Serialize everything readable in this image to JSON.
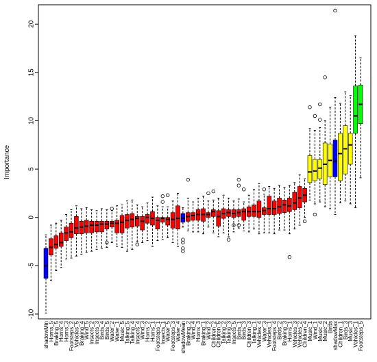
{
  "chart_data": {
    "type": "boxplot",
    "title": "",
    "xlabel": "",
    "ylabel": "Importance",
    "ylim": [
      -10.5,
      22
    ],
    "y_ticks": [
      -10,
      -5,
      0,
      5,
      10,
      15,
      20
    ],
    "colors": {
      "rejected": "#ff0000",
      "tentative": "#ffff00",
      "confirmed": "#00ff00",
      "shadow": "#0000ff"
    },
    "boxes": [
      {
        "label": "shadowMin",
        "status": "shadow",
        "stats": [
          -9.9,
          -6.3,
          -5.0,
          -3.2,
          -1.8
        ],
        "outliers": []
      },
      {
        "label": "Horns_5",
        "status": "rejected",
        "stats": [
          -6.5,
          -3.9,
          -3.1,
          -2.2,
          -0.8
        ],
        "outliers": []
      },
      {
        "label": "Braking_5",
        "status": "rejected",
        "stats": [
          -5.5,
          -3.2,
          -2.8,
          -1.9,
          -0.6
        ],
        "outliers": []
      },
      {
        "label": "Horns_4",
        "status": "rejected",
        "stats": [
          -5.2,
          -3.0,
          -2.6,
          -1.6,
          -0.3
        ],
        "outliers": []
      },
      {
        "label": "Horns_3",
        "status": "rejected",
        "stats": [
          -4.3,
          -2.4,
          -1.6,
          -1.0,
          0.3
        ],
        "outliers": []
      },
      {
        "label": "Footsteps_2",
        "status": "rejected",
        "stats": [
          -4.2,
          -2.1,
          -1.5,
          -0.6,
          0.8
        ],
        "outliers": []
      },
      {
        "label": "Vehicles_5",
        "status": "rejected",
        "stats": [
          -4.0,
          -1.7,
          -1.1,
          0.1,
          1.2
        ],
        "outliers": []
      },
      {
        "label": "Braking_4",
        "status": "rejected",
        "stats": [
          -3.8,
          -1.7,
          -1.0,
          -0.4,
          0.9
        ],
        "outliers": []
      },
      {
        "label": "Wind_5",
        "status": "rejected",
        "stats": [
          -3.6,
          -1.6,
          -0.9,
          -0.3,
          1.0
        ],
        "outliers": []
      },
      {
        "label": "Insects_2",
        "status": "rejected",
        "stats": [
          -3.5,
          -1.6,
          -0.8,
          -0.4,
          0.8
        ],
        "outliers": []
      },
      {
        "label": "Insects_3",
        "status": "rejected",
        "stats": [
          -3.3,
          -1.5,
          -0.8,
          -0.4,
          0.7
        ],
        "outliers": []
      },
      {
        "label": "Birds_4",
        "status": "rejected",
        "stats": [
          -3.2,
          -1.5,
          -0.7,
          -0.4,
          0.9
        ],
        "outliers": []
      },
      {
        "label": "Birds_5",
        "status": "rejected",
        "stats": [
          -3.1,
          -1.2,
          -0.7,
          -0.4,
          0.8
        ],
        "outliers": [
          -2.6
        ]
      },
      {
        "label": "Water_2",
        "status": "rejected",
        "stats": [
          -2.6,
          -1.0,
          -0.6,
          -0.4,
          0.7
        ],
        "outliers": [
          0.9
        ]
      },
      {
        "label": "Water_1",
        "status": "rejected",
        "stats": [
          -3.0,
          -1.6,
          -0.6,
          -0.3,
          1.2
        ],
        "outliers": []
      },
      {
        "label": "Music_5",
        "status": "rejected",
        "stats": [
          -3.1,
          -1.6,
          -0.5,
          0.2,
          1.3
        ],
        "outliers": []
      },
      {
        "label": "Talking_5",
        "status": "rejected",
        "stats": [
          -3.5,
          -1.1,
          -0.3,
          0.3,
          1.7
        ],
        "outliers": []
      },
      {
        "label": "Talking_4",
        "status": "rejected",
        "stats": [
          -3.3,
          -1.0,
          -0.2,
          0.4,
          1.8
        ],
        "outliers": []
      },
      {
        "label": "Insects_4",
        "status": "rejected",
        "stats": [
          -2.5,
          -0.9,
          -0.1,
          0.1,
          1.3
        ],
        "outliers": [
          -2.8
        ]
      },
      {
        "label": "Wind_3",
        "status": "rejected",
        "stats": [
          -2.6,
          -1.3,
          -0.4,
          0.1,
          1.1
        ],
        "outliers": []
      },
      {
        "label": "Horns_2",
        "status": "rejected",
        "stats": [
          -2.4,
          -0.6,
          0.0,
          0.3,
          1.5
        ],
        "outliers": []
      },
      {
        "label": "Horns_1",
        "status": "rejected",
        "stats": [
          -3.0,
          -0.8,
          -0.1,
          0.6,
          2.1
        ],
        "outliers": []
      },
      {
        "label": "Footsteps_1",
        "status": "rejected",
        "stats": [
          -2.4,
          -1.2,
          -0.3,
          0.0,
          1.2
        ],
        "outliers": []
      },
      {
        "label": "Insects_1",
        "status": "rejected",
        "stats": [
          -2.3,
          -0.5,
          -0.1,
          0.0,
          1.1
        ],
        "outliers": [
          1.6,
          2.2
        ]
      },
      {
        "label": "Water_5",
        "status": "rejected",
        "stats": [
          -2.1,
          -0.8,
          -0.2,
          0.0,
          1.1
        ],
        "outliers": [
          2.3
        ]
      },
      {
        "label": "Footsteps_3",
        "status": "rejected",
        "stats": [
          -2.6,
          -1.1,
          -0.2,
          0.5,
          1.7
        ],
        "outliers": []
      },
      {
        "label": "Water_4",
        "status": "rejected",
        "stats": [
          -3.0,
          -1.2,
          -0.1,
          1.2,
          2.5
        ],
        "outliers": []
      },
      {
        "label": "shadowMean",
        "status": "shadow",
        "stats": [
          -1.0,
          -0.5,
          -0.1,
          0.4,
          1.0
        ],
        "outliers": [
          -2.3,
          -2.6,
          -3.2,
          -3.5
        ]
      },
      {
        "label": "Braking_2",
        "status": "rejected",
        "stats": [
          -1.4,
          -0.4,
          0.1,
          0.5,
          2.0
        ],
        "outliers": [
          3.9
        ]
      },
      {
        "label": "Wind_4",
        "status": "rejected",
        "stats": [
          -1.5,
          -0.3,
          0.2,
          0.5,
          1.6
        ],
        "outliers": []
      },
      {
        "label": "Horns_3",
        "status": "rejected",
        "stats": [
          -1.5,
          -0.3,
          0.3,
          0.8,
          2.0
        ],
        "outliers": []
      },
      {
        "label": "Braking_1",
        "status": "rejected",
        "stats": [
          -1.7,
          -0.4,
          0.3,
          0.9,
          2.2
        ],
        "outliers": []
      },
      {
        "label": "Wind_2",
        "status": "rejected",
        "stats": [
          -1.0,
          0.0,
          0.3,
          0.5,
          1.7
        ],
        "outliers": [
          2.5
        ]
      },
      {
        "label": "Children_2",
        "status": "rejected",
        "stats": [
          -1.6,
          0.1,
          0.6,
          0.8,
          1.8
        ],
        "outliers": [
          2.7
        ]
      },
      {
        "label": "Children_5",
        "status": "rejected",
        "stats": [
          -2.0,
          -0.9,
          0.1,
          0.7,
          2.0
        ],
        "outliers": []
      },
      {
        "label": "Talking_2",
        "status": "rejected",
        "stats": [
          -1.6,
          -0.1,
          0.4,
          0.9,
          2.3
        ],
        "outliers": []
      },
      {
        "label": "Talking_3",
        "status": "rejected",
        "stats": [
          -2.0,
          0.1,
          0.5,
          0.8,
          2.0
        ],
        "outliers": [
          -2.3
        ]
      },
      {
        "label": "Insects_5",
        "status": "rejected",
        "stats": [
          -1.5,
          0.0,
          0.4,
          0.8,
          1.7
        ],
        "outliers": [
          -0.8
        ]
      },
      {
        "label": "Birds_1",
        "status": "rejected",
        "stats": [
          -1.1,
          0.1,
          0.5,
          0.8,
          1.9
        ],
        "outliers": [
          -0.8,
          3.3,
          3.9
        ]
      },
      {
        "label": "Birds_3",
        "status": "rejected",
        "stats": [
          -1.4,
          -0.3,
          0.6,
          0.9,
          1.6
        ],
        "outliers": [
          2.9
        ]
      },
      {
        "label": "Children_3",
        "status": "rejected",
        "stats": [
          -1.5,
          0.1,
          0.6,
          1.1,
          2.3
        ],
        "outliers": []
      },
      {
        "label": "Talking_1",
        "status": "rejected",
        "stats": [
          -1.2,
          0.1,
          0.6,
          1.3,
          2.9
        ],
        "outliers": []
      },
      {
        "label": "Vehicles_4",
        "status": "rejected",
        "stats": [
          -1.7,
          0.0,
          0.6,
          1.7,
          3.5
        ],
        "outliers": []
      },
      {
        "label": "Water_3",
        "status": "rejected",
        "stats": [
          -1.6,
          0.3,
          0.7,
          1.0,
          2.4
        ],
        "outliers": [
          2.9
        ]
      },
      {
        "label": "Vehicles_1",
        "status": "rejected",
        "stats": [
          -1.6,
          0.3,
          0.9,
          2.2,
          3.2
        ],
        "outliers": []
      },
      {
        "label": "Footsteps_4",
        "status": "rejected",
        "stats": [
          -1.7,
          0.3,
          0.9,
          1.7,
          3.0
        ],
        "outliers": []
      },
      {
        "label": "Birds_2",
        "status": "rejected",
        "stats": [
          -1.3,
          0.4,
          1.1,
          2.0,
          3.3
        ],
        "outliers": []
      },
      {
        "label": "Braking_3",
        "status": "rejected",
        "stats": [
          -1.3,
          0.5,
          1.3,
          1.8,
          3.1
        ],
        "outliers": []
      },
      {
        "label": "Horns_1",
        "status": "rejected",
        "stats": [
          -1.7,
          0.6,
          1.2,
          2.0,
          3.3
        ],
        "outliers": [
          -4.1
        ]
      },
      {
        "label": "Vehicles_3",
        "status": "rejected",
        "stats": [
          -1.2,
          0.8,
          1.5,
          2.6,
          3.6
        ],
        "outliers": []
      },
      {
        "label": "Vehicles_2",
        "status": "rejected",
        "stats": [
          -0.8,
          1.0,
          2.0,
          3.2,
          4.4
        ],
        "outliers": []
      },
      {
        "label": "Children_4",
        "status": "rejected",
        "stats": [
          0.0,
          1.6,
          2.3,
          3.0,
          4.0
        ],
        "outliers": [
          -0.4
        ]
      },
      {
        "label": "Music_1",
        "status": "tentative",
        "stats": [
          1.8,
          3.6,
          4.7,
          6.4,
          9.2
        ],
        "outliers": [
          11.4
        ]
      },
      {
        "label": "Wind_1",
        "status": "tentative",
        "stats": [
          1.4,
          3.8,
          4.8,
          6.0,
          9.0
        ],
        "outliers": [
          0.3,
          10.5
        ]
      },
      {
        "label": "Music_4",
        "status": "tentative",
        "stats": [
          1.6,
          4.0,
          5.1,
          6.0,
          9.3
        ],
        "outliers": [
          10.1,
          11.7
        ]
      },
      {
        "label": "Music_2",
        "status": "tentative",
        "stats": [
          1.1,
          3.4,
          5.5,
          7.7,
          10.0
        ],
        "outliers": [
          14.5
        ]
      },
      {
        "label": "Birds",
        "status": "tentative",
        "stats": [
          0.9,
          4.2,
          5.9,
          7.6,
          11.4
        ],
        "outliers": []
      },
      {
        "label": "shadowMax",
        "status": "shadow",
        "stats": [
          0.3,
          4.2,
          5.8,
          8.0,
          12.4
        ],
        "outliers": [
          21.4
        ]
      },
      {
        "label": "Children_1",
        "status": "tentative",
        "stats": [
          1.5,
          3.8,
          6.6,
          8.7,
          11.8
        ],
        "outliers": []
      },
      {
        "label": "Birds_3",
        "status": "tentative",
        "stats": [
          1.7,
          4.5,
          7.1,
          9.5,
          13.0
        ],
        "outliers": []
      },
      {
        "label": "Music_3",
        "status": "tentative",
        "stats": [
          1.4,
          5.5,
          7.5,
          8.7,
          12.6
        ],
        "outliers": []
      },
      {
        "label": "Vehicles_1",
        "status": "confirmed",
        "stats": [
          1.0,
          8.7,
          10.5,
          13.6,
          18.8
        ],
        "outliers": []
      },
      {
        "label": "Footsteps_5",
        "status": "confirmed",
        "stats": [
          4.1,
          9.7,
          11.7,
          13.7,
          16.5
        ],
        "outliers": []
      }
    ]
  }
}
